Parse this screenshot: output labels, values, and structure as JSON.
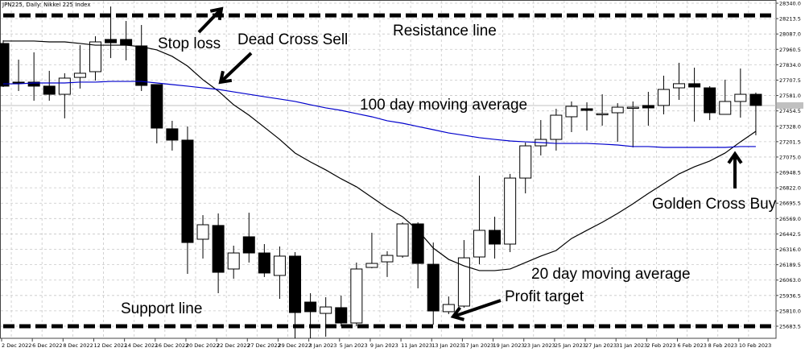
{
  "title": "JPN225, Daily: Nikkei 225 Index",
  "annotations": {
    "stop_loss": "Stop loss",
    "dead_cross": "Dead Cross Sell",
    "resistance": "Resistance line",
    "ma100": "100 day moving average",
    "golden_cross": "Golden Cross Buy",
    "ma20": "20 day moving average",
    "profit_target": "Profit target",
    "support": "Support line"
  },
  "chart_data": {
    "type": "candlestick",
    "ylim": [
      25584,
      28366
    ],
    "grid": true,
    "colors": {
      "bull_body": "#ffffff",
      "bear_body": "#000000",
      "ma20": "#000000",
      "ma100": "#0000cc",
      "grid": "#c8c8c8",
      "levels": "#000000"
    },
    "yticks": [
      "28340.0",
      "28213.5",
      "28087.0",
      "27960.5",
      "27834.0",
      "27707.5",
      "27581.0",
      "27454.5",
      "27328.0",
      "27201.5",
      "27075.0",
      "26948.5",
      "26822.0",
      "26695.5",
      "26569.0",
      "26442.5",
      "26316.0",
      "26189.5",
      "26063.0",
      "25936.5",
      "25810.0",
      "25683.5"
    ],
    "xticks": [
      "2 Dec 2022",
      "6 Dec 2022",
      "8 Dec 2022",
      "12 Dec 2022",
      "14 Dec 2022",
      "16 Dec 2022",
      "20 Dec 2022",
      "22 Dec 2022",
      "27 Dec 2022",
      "29 Dec 2022",
      "3 Jan 2023",
      "5 Jan 2023",
      "9 Jan 2023",
      "11 Jan 2023",
      "13 Jan 2023",
      "17 Jan 2023",
      "19 Jan 2023",
      "23 Jan 2023",
      "25 Jan 2023",
      "27 Jan 2023",
      "31 Jan 2023",
      "2 Feb 2023",
      "6 Feb 2023",
      "8 Feb 2023",
      "10 Feb 2023"
    ],
    "dates": [
      "2 Dec",
      "5 Dec",
      "6 Dec",
      "7 Dec",
      "8 Dec",
      "9 Dec",
      "12 Dec",
      "13 Dec",
      "14 Dec",
      "15 Dec",
      "16 Dec",
      "19 Dec",
      "20 Dec",
      "21 Dec",
      "22 Dec",
      "23 Dec",
      "27 Dec",
      "28 Dec",
      "29 Dec",
      "30 Dec",
      "3 Jan",
      "4 Jan",
      "5 Jan",
      "6 Jan",
      "9 Jan",
      "10 Jan",
      "11 Jan",
      "12 Jan",
      "13 Jan",
      "16 Jan",
      "17 Jan",
      "18 Jan",
      "19 Jan",
      "20 Jan",
      "23 Jan",
      "24 Jan",
      "25 Jan",
      "26 Jan",
      "27 Jan",
      "30 Jan",
      "31 Jan",
      "1 Feb",
      "2 Feb",
      "3 Feb",
      "6 Feb",
      "7 Feb",
      "8 Feb",
      "9 Feb",
      "10 Feb",
      "13 Feb"
    ],
    "ohlc": [
      [
        28009,
        28035,
        27651,
        27658
      ],
      [
        27691,
        27876,
        27618,
        27684
      ],
      [
        27691,
        27936,
        27538,
        27658
      ],
      [
        27658,
        27784,
        27538,
        27591
      ],
      [
        27591,
        27764,
        27393,
        27724
      ],
      [
        27730,
        27995,
        27638,
        27764
      ],
      [
        27777,
        28068,
        27704,
        28022
      ],
      [
        28042,
        28313,
        27889,
        28015
      ],
      [
        28042,
        28194,
        27870,
        27995
      ],
      [
        27989,
        28161,
        27618,
        27664
      ],
      [
        27671,
        27671,
        27187,
        27313
      ],
      [
        27307,
        27373,
        27128,
        27214
      ],
      [
        27214,
        27326,
        26114,
        26372
      ],
      [
        26399,
        26597,
        26240,
        26518
      ],
      [
        26512,
        26611,
        25955,
        26127
      ],
      [
        26154,
        26346,
        26074,
        26286
      ],
      [
        26419,
        26617,
        26207,
        26286
      ],
      [
        26286,
        26359,
        26088,
        26121
      ],
      [
        26101,
        26339,
        25909,
        26260
      ],
      [
        26260,
        26293,
        25584,
        25796
      ],
      [
        25882,
        25955,
        25584,
        25803
      ],
      [
        25789,
        25922,
        25597,
        25842
      ],
      [
        25836,
        25935,
        25683,
        25710
      ],
      [
        25710,
        26207,
        25683,
        26154
      ],
      [
        26167,
        26452,
        26160,
        26200
      ],
      [
        26213,
        26300,
        26088,
        26266
      ],
      [
        26260,
        26538,
        26246,
        26525
      ],
      [
        26525,
        26538,
        25995,
        26200
      ],
      [
        26193,
        26372,
        25697,
        25809
      ],
      [
        25803,
        25928,
        25783,
        25862
      ],
      [
        25849,
        26392,
        25836,
        26246
      ],
      [
        26253,
        26922,
        26193,
        26472
      ],
      [
        26472,
        26584,
        26240,
        26359
      ],
      [
        26359,
        26936,
        26293,
        26902
      ],
      [
        26902,
        27194,
        26776,
        27167
      ],
      [
        27167,
        27379,
        27088,
        27220
      ],
      [
        27220,
        27472,
        27128,
        27419
      ],
      [
        27406,
        27532,
        27280,
        27492
      ],
      [
        27472,
        27525,
        27293,
        27459
      ],
      [
        27426,
        27591,
        27333,
        27432
      ],
      [
        27439,
        27518,
        27200,
        27485
      ],
      [
        27485,
        27532,
        27154,
        27485
      ],
      [
        27499,
        27611,
        27333,
        27479
      ],
      [
        27499,
        27744,
        27426,
        27631
      ],
      [
        27644,
        27850,
        27545,
        27678
      ],
      [
        27678,
        27810,
        27366,
        27651
      ],
      [
        27644,
        27658,
        27379,
        27439
      ],
      [
        27426,
        27711,
        27426,
        27532
      ],
      [
        27532,
        27803,
        27399,
        27591
      ],
      [
        27591,
        27605,
        27254,
        27499
      ]
    ],
    "series": [
      {
        "name": "20 day moving average",
        "values": [
          28029,
          28029,
          28029,
          28022,
          28022,
          28009,
          27995,
          27995,
          27995,
          27982,
          27956,
          27903,
          27823,
          27711,
          27618,
          27505,
          27419,
          27320,
          27220,
          27108,
          27035,
          26969,
          26896,
          26830,
          26743,
          26657,
          26584,
          26472,
          26326,
          26233,
          26180,
          26141,
          26141,
          26154,
          26207,
          26260,
          26306,
          26405,
          26472,
          26538,
          26611,
          26690,
          26776,
          26856,
          26936,
          26995,
          27042,
          27108,
          27200,
          27287
        ]
      },
      {
        "name": "100 day moving average",
        "values": [
          27677,
          27677,
          27684,
          27684,
          27684,
          27691,
          27691,
          27697,
          27697,
          27697,
          27684,
          27671,
          27658,
          27644,
          27631,
          27611,
          27591,
          27571,
          27552,
          27532,
          27505,
          27479,
          27459,
          27432,
          27406,
          27373,
          27353,
          27326,
          27300,
          27273,
          27254,
          27234,
          27220,
          27207,
          27200,
          27194,
          27187,
          27187,
          27187,
          27181,
          27174,
          27161,
          27161,
          27154,
          27154,
          27154,
          27154,
          27154,
          27161,
          27161
        ]
      }
    ],
    "levels": {
      "resistance": 28240,
      "support": 25683.5
    },
    "last_price": 27499
  }
}
